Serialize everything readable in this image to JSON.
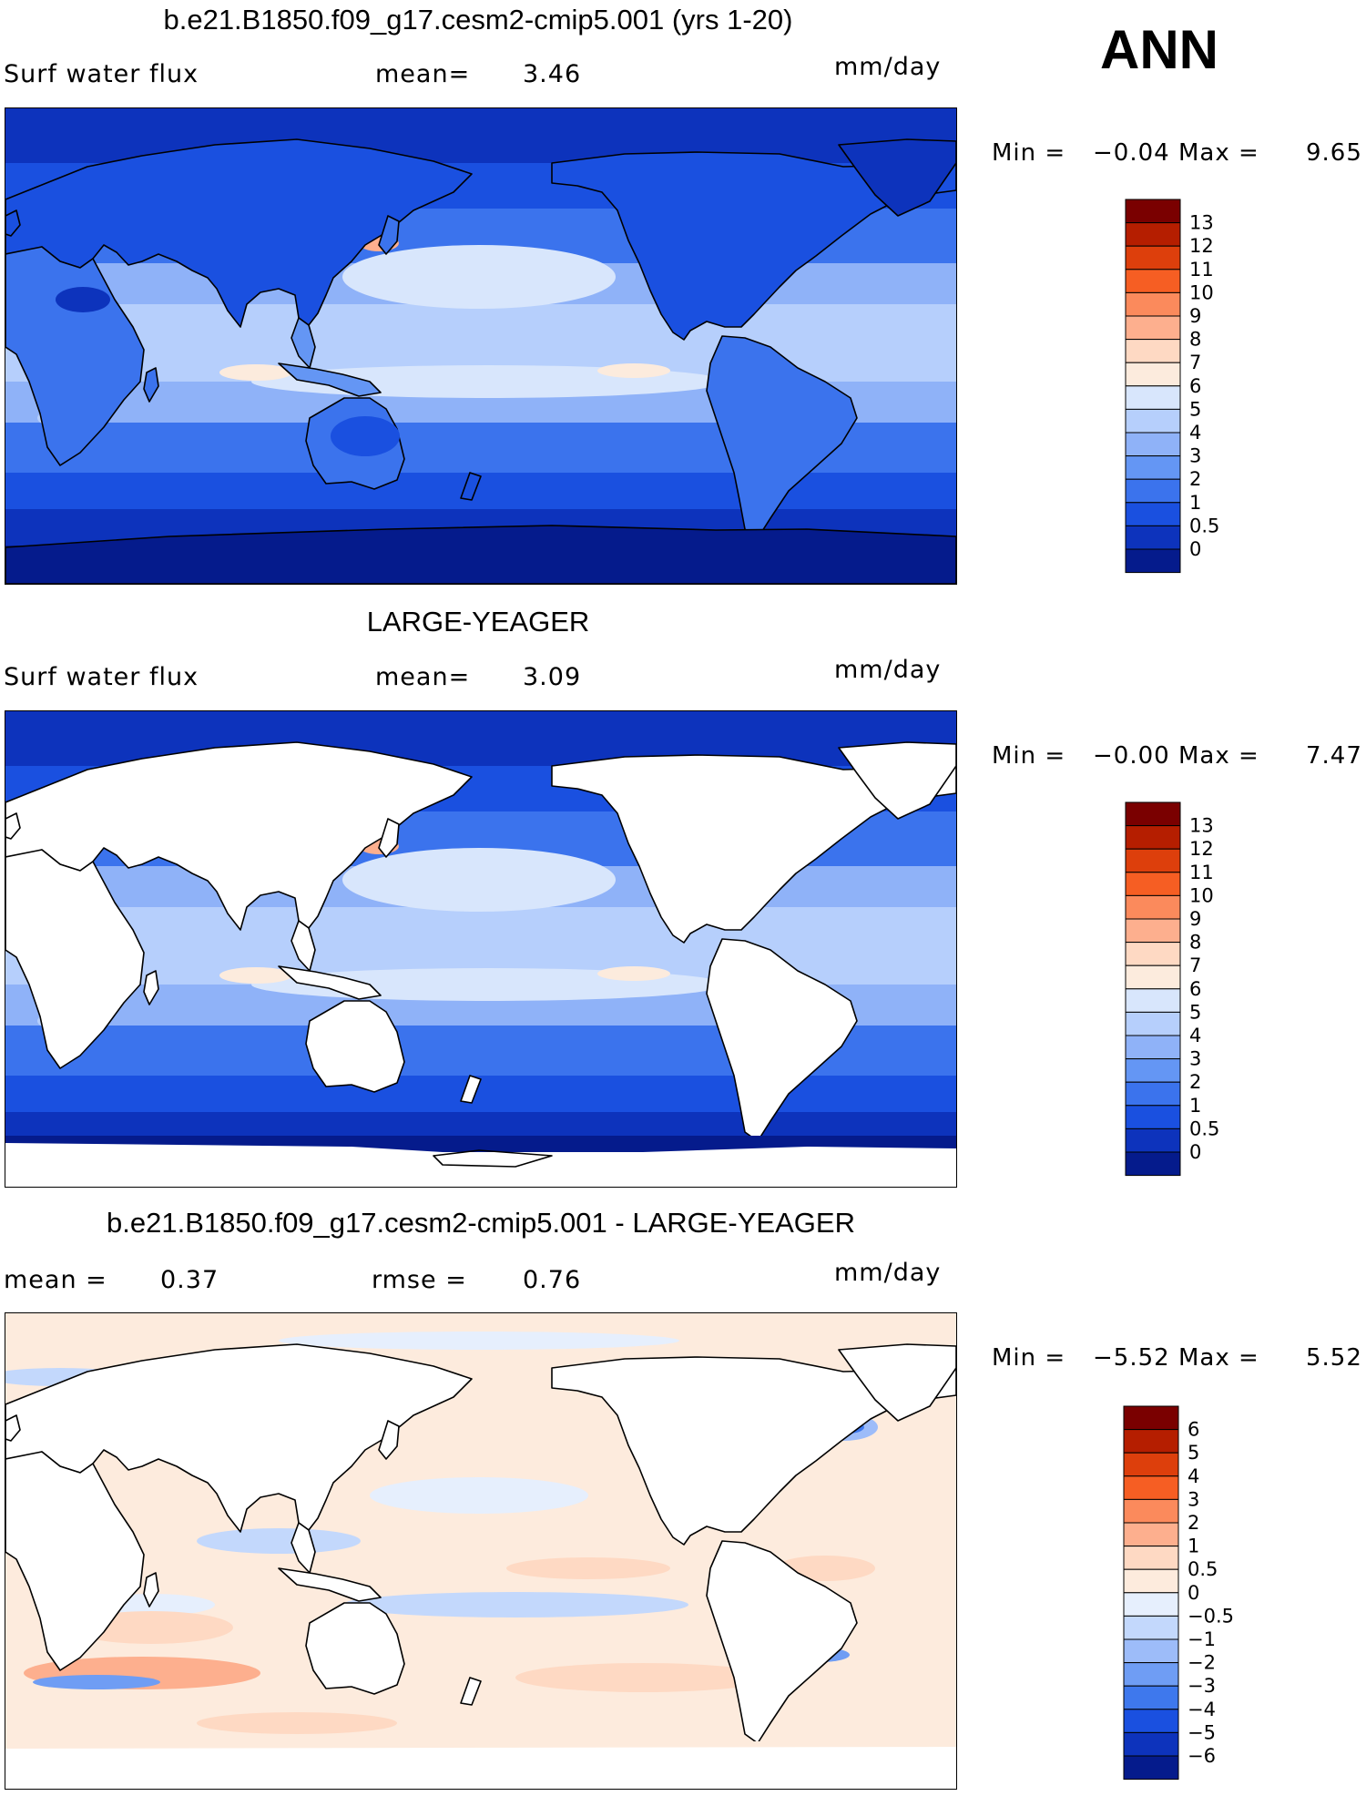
{
  "season": "ANN",
  "panels": [
    {
      "title": "b.e21.B1850.f09_g17.cesm2-cmip5.001 (yrs 1-20)",
      "variable": "Surf water flux",
      "mean_label": "mean=",
      "mean_value": "3.46",
      "units": "mm/day",
      "min_label": "Min =",
      "min_value": "−0.04",
      "max_label": "Max =",
      "max_value": "9.65",
      "map_kind": "model",
      "colorbar": {
        "labels": [
          "13",
          "12",
          "11",
          "10",
          "9",
          "8",
          "7",
          "6",
          "5",
          "4",
          "3",
          "2",
          "1",
          "0.5",
          "0"
        ],
        "colors": [
          "#7a0000",
          "#b51e00",
          "#dd3f0c",
          "#f65e23",
          "#fb8a5c",
          "#fdaf8e",
          "#fed9c3",
          "#fcebdd",
          "#d8e6fc",
          "#b6cffc",
          "#8fb2f8",
          "#6496f4",
          "#3b73ed",
          "#1a50e0",
          "#0d33bc",
          "#051b8c"
        ]
      }
    },
    {
      "title": "LARGE-YEAGER",
      "variable": "Surf water flux",
      "mean_label": "mean=",
      "mean_value": "3.09",
      "units": "mm/day",
      "min_label": "Min =",
      "min_value": "−0.00",
      "max_label": "Max =",
      "max_value": "7.47",
      "map_kind": "obs",
      "colorbar": {
        "labels": [
          "13",
          "12",
          "11",
          "10",
          "9",
          "8",
          "7",
          "6",
          "5",
          "4",
          "3",
          "2",
          "1",
          "0.5",
          "0"
        ],
        "colors": [
          "#7a0000",
          "#b51e00",
          "#dd3f0c",
          "#f65e23",
          "#fb8a5c",
          "#fdaf8e",
          "#fed9c3",
          "#fcebdd",
          "#d8e6fc",
          "#b6cffc",
          "#8fb2f8",
          "#6496f4",
          "#3b73ed",
          "#1a50e0",
          "#0d33bc",
          "#051b8c"
        ]
      }
    },
    {
      "title": "b.e21.B1850.f09_g17.cesm2-cmip5.001 - LARGE-YEAGER",
      "mean_label": "mean =",
      "mean_value": "0.37",
      "rmse_label": "rmse =",
      "rmse_value": "0.76",
      "units": "mm/day",
      "min_label": "Min =",
      "min_value": "−5.52",
      "max_label": "Max =",
      "max_value": "5.52",
      "map_kind": "diff",
      "colorbar": {
        "labels": [
          "6",
          "5",
          "4",
          "3",
          "2",
          "1",
          "0.5",
          "0",
          "−0.5",
          "−1",
          "−2",
          "−3",
          "−4",
          "−5",
          "−6"
        ],
        "colors": [
          "#7a0000",
          "#b51e00",
          "#dd3f0c",
          "#f65e23",
          "#fb8a5c",
          "#fdaf8e",
          "#fed9c3",
          "#fdebdd",
          "#e6effd",
          "#c3d8fc",
          "#9dbcf9",
          "#6f9df4",
          "#3e78ed",
          "#1a50e0",
          "#0d33bc",
          "#051b8c"
        ]
      }
    }
  ]
}
